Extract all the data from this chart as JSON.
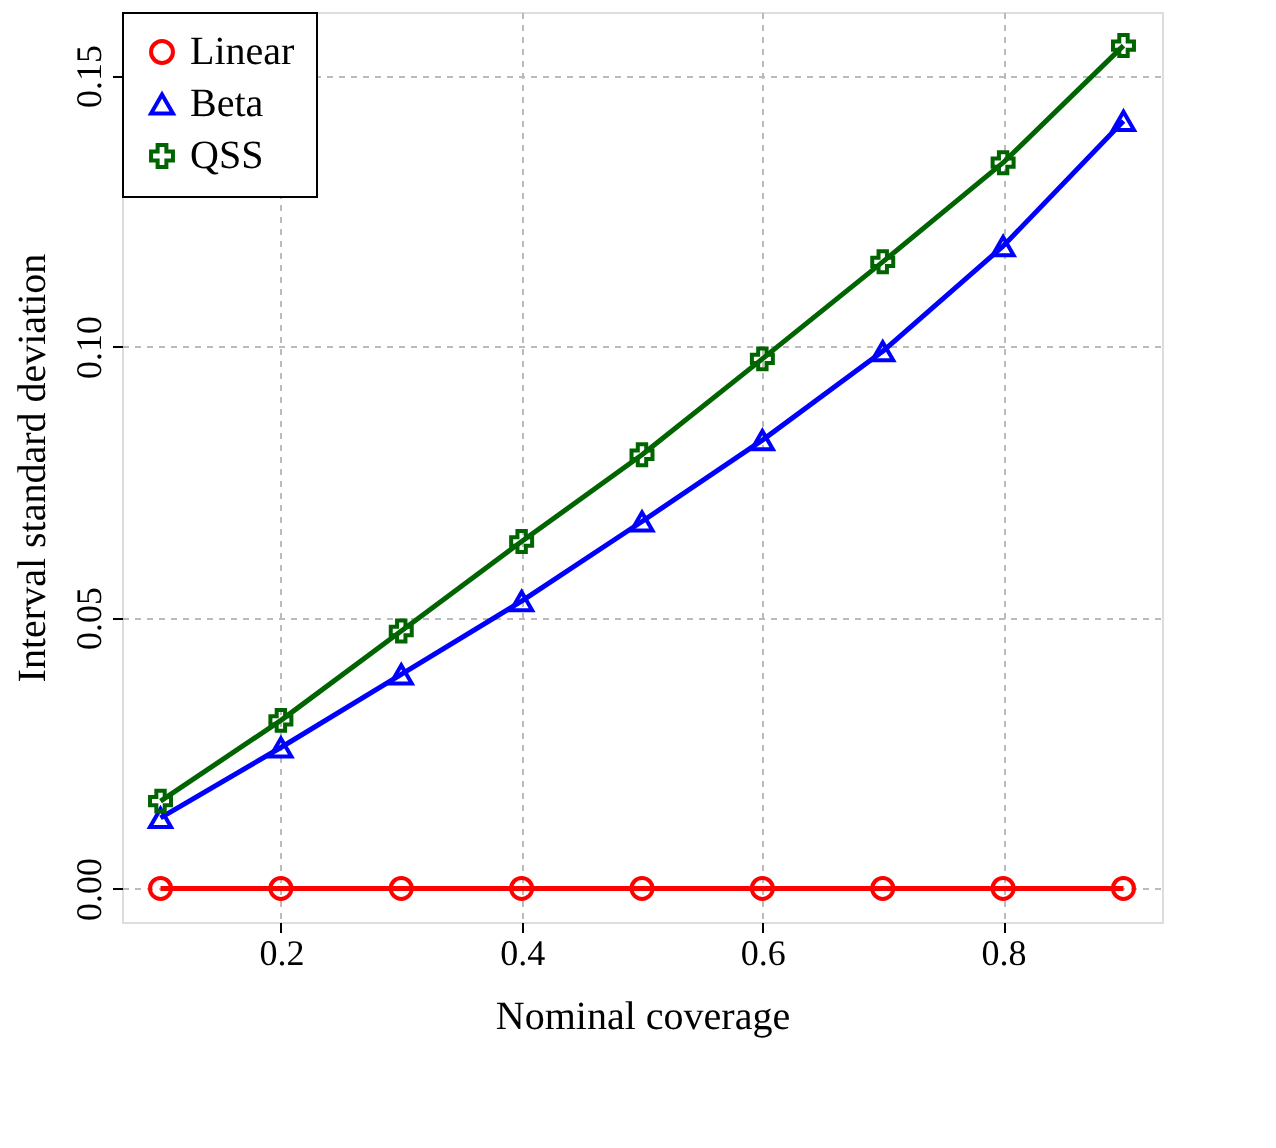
{
  "chart_data": {
    "type": "line",
    "xlabel": "Nominal coverage",
    "ylabel": "Interval standard deviation",
    "x": [
      0.1,
      0.2,
      0.3,
      0.4,
      0.5,
      0.6,
      0.7,
      0.8,
      0.9
    ],
    "series": [
      {
        "name": "Linear",
        "color": "#ff0000",
        "marker": "circle",
        "values": [
          0,
          0,
          0,
          0,
          0,
          0,
          0,
          0,
          0
        ]
      },
      {
        "name": "Beta",
        "color": "#0000ff",
        "marker": "triangle",
        "values": [
          0.013,
          0.026,
          0.0395,
          0.053,
          0.0677,
          0.0827,
          0.0991,
          0.1185,
          0.1416
        ]
      },
      {
        "name": "QSS",
        "color": "#006400",
        "marker": "cross",
        "values": [
          0.0161,
          0.031,
          0.0475,
          0.064,
          0.08,
          0.0977,
          0.1156,
          0.1339,
          0.1555
        ]
      }
    ],
    "xlim": [
      0.068,
      0.932
    ],
    "xticks": [
      0.2,
      0.4,
      0.6,
      0.8
    ],
    "ylim": [
      -0.0062,
      0.1617
    ],
    "yticks": [
      {
        "value": 0,
        "label": "0.00"
      },
      {
        "value": 0.05,
        "label": "0.05"
      },
      {
        "value": 0.1,
        "label": "0.10"
      },
      {
        "value": 0.15,
        "label": "0.15"
      }
    ],
    "grid": true,
    "legend": "top left",
    "line_style": "solid"
  }
}
